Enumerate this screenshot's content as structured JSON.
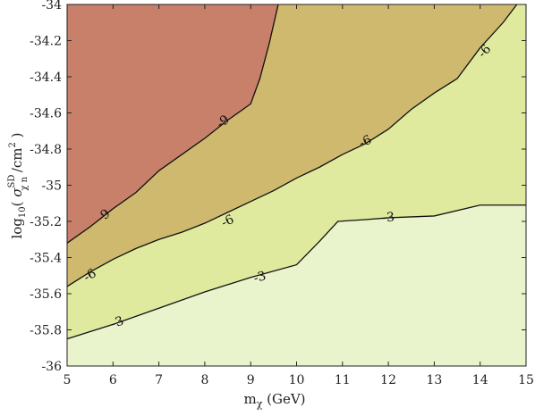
{
  "chart_data": {
    "type": "contour",
    "xlabel": {
      "base": "m",
      "sub": "χ",
      "rest": " (GeV)"
    },
    "ylabel": {
      "prefix": "log",
      "sub10": "10",
      "open": "( ",
      "sigma": "σ",
      "sup": "SD",
      "sub": "χ n",
      "unit": " /cm",
      "pow": "2",
      "close": " )"
    },
    "xlim": [
      5,
      15
    ],
    "ylim": [
      -36,
      -34
    ],
    "xticks": [
      5,
      6,
      7,
      8,
      9,
      10,
      11,
      12,
      13,
      14,
      15
    ],
    "yticks": [
      -36,
      -35.8,
      -35.6,
      -35.4,
      -35.2,
      -35,
      -34.8,
      -34.6,
      -34.4,
      -34.2,
      -34
    ],
    "xtick_labels": [
      "5",
      "6",
      "7",
      "8",
      "9",
      "10",
      "11",
      "12",
      "13",
      "14",
      "15"
    ],
    "ytick_labels": [
      "-36",
      "-35.8",
      "-35.6",
      "-35.4",
      "-35.2",
      "-35",
      "-34.8",
      "-34.6",
      "-34.4",
      "-34.2",
      "-34"
    ],
    "grid": false,
    "levels": [
      {
        "value": -9,
        "label": "-9",
        "fill": "#c8806a",
        "points": [
          [
            5,
            -35.32
          ],
          [
            5.5,
            -35.23
          ],
          [
            6,
            -35.13
          ],
          [
            6.5,
            -35.04
          ],
          [
            7,
            -34.92
          ],
          [
            7.5,
            -34.83
          ],
          [
            8,
            -34.74
          ],
          [
            8.5,
            -34.64
          ],
          [
            9,
            -34.55
          ],
          [
            9.2,
            -34.41
          ],
          [
            9.4,
            -34.22
          ],
          [
            9.6,
            -34
          ]
        ],
        "labels": [
          {
            "x": 5.8,
            "y": -35.17,
            "text": "-9"
          },
          {
            "x": 8.4,
            "y": -34.65,
            "text": "-9"
          }
        ]
      },
      {
        "value": -6,
        "label": "-6",
        "fill": "#cfb96e",
        "points": [
          [
            5,
            -35.56
          ],
          [
            5.5,
            -35.48
          ],
          [
            6,
            -35.41
          ],
          [
            6.5,
            -35.35
          ],
          [
            7,
            -35.3
          ],
          [
            7.5,
            -35.26
          ],
          [
            8,
            -35.21
          ],
          [
            8.5,
            -35.15
          ],
          [
            9,
            -35.09
          ],
          [
            9.5,
            -35.03
          ],
          [
            10,
            -34.96
          ],
          [
            10.5,
            -34.9
          ],
          [
            11,
            -34.83
          ],
          [
            11.5,
            -34.77
          ],
          [
            12,
            -34.69
          ],
          [
            12.5,
            -34.58
          ],
          [
            13,
            -34.49
          ],
          [
            13.5,
            -34.41
          ],
          [
            14,
            -34.24
          ],
          [
            14.5,
            -34.1
          ],
          [
            14.8,
            -34
          ]
        ],
        "labels": [
          {
            "x": 5.5,
            "y": -35.5,
            "text": "-6"
          },
          {
            "x": 8.5,
            "y": -35.2,
            "text": "-6"
          },
          {
            "x": 11.5,
            "y": -34.76,
            "text": "-6"
          },
          {
            "x": 14.1,
            "y": -34.26,
            "text": "-6"
          }
        ]
      },
      {
        "value": -3,
        "label": "-3",
        "fill": "#e0ea9e",
        "points": [
          [
            5,
            -35.85
          ],
          [
            6,
            -35.77
          ],
          [
            7,
            -35.68
          ],
          [
            8,
            -35.59
          ],
          [
            9,
            -35.51
          ],
          [
            10,
            -35.44
          ],
          [
            10.5,
            -35.31
          ],
          [
            10.9,
            -35.2
          ],
          [
            11.5,
            -35.19
          ],
          [
            12,
            -35.18
          ],
          [
            13,
            -35.17
          ],
          [
            14,
            -35.11
          ],
          [
            15,
            -35.11
          ]
        ],
        "labels": [
          {
            "x": 6.1,
            "y": -35.76,
            "text": "-3"
          },
          {
            "x": 9.2,
            "y": -35.51,
            "text": "-3"
          },
          {
            "x": 12,
            "y": -35.18,
            "text": "-3"
          }
        ]
      }
    ],
    "background_fill": "#eaf4cc"
  }
}
